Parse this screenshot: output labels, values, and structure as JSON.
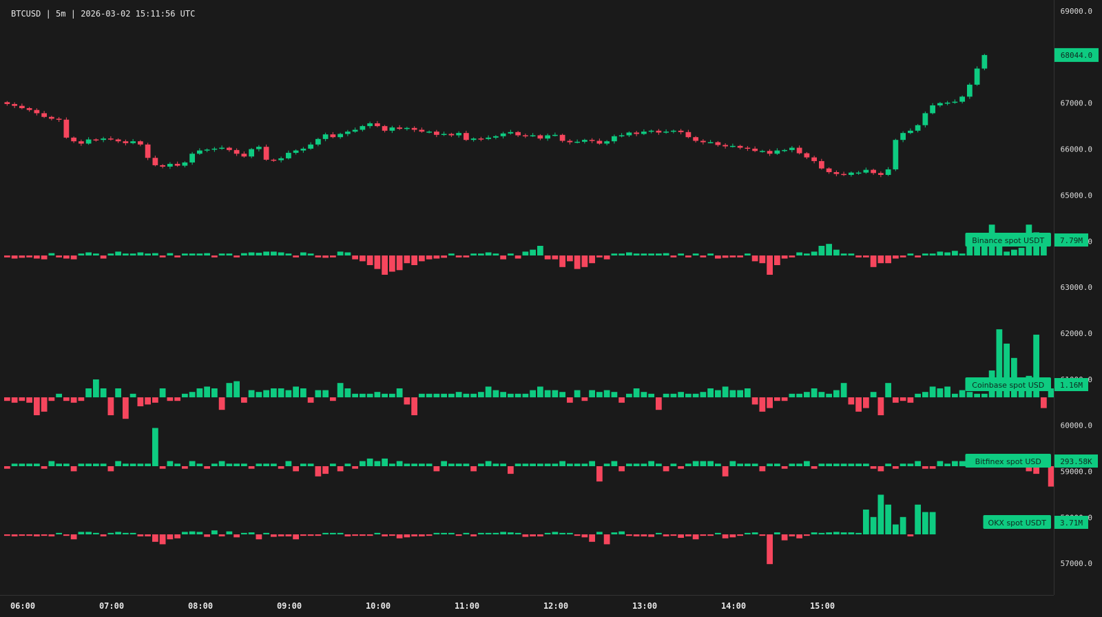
{
  "header": {
    "symbol": "BTCUSD",
    "interval": "5m",
    "timestamp": "2026-03-02 15:11:56 UTC"
  },
  "colors": {
    "background": "#1a1a1a",
    "up": "#0ecb81",
    "down": "#f6465d",
    "axis_text": "#dcdcdc",
    "border": "#333333"
  },
  "chart_data": {
    "type": "candlestick",
    "interval": "5m",
    "ylim": [
      56800,
      69100
    ],
    "y_ticks": [
      "69000.0",
      "68000.0",
      "67000.0",
      "66000.0",
      "65000.0",
      "64000.0",
      "63000.0",
      "62000.0",
      "61000.0",
      "60000.0",
      "59000.0",
      "58000.0",
      "57000.0"
    ],
    "x_ticks": [
      "06:00",
      "07:00",
      "08:00",
      "09:00",
      "10:00",
      "11:00",
      "12:00",
      "13:00",
      "14:00",
      "15:00"
    ],
    "last_price": "68044.0",
    "close_prices": [
      66980,
      66940,
      66890,
      66850,
      66780,
      66700,
      66660,
      66640,
      66250,
      66170,
      66120,
      66210,
      66200,
      66230,
      66210,
      66170,
      66130,
      66170,
      66100,
      65810,
      65650,
      65620,
      65680,
      65640,
      65710,
      65900,
      65970,
      65990,
      66010,
      66030,
      65980,
      65900,
      65840,
      66000,
      66050,
      65770,
      65760,
      65800,
      65920,
      65970,
      66010,
      66100,
      66220,
      66320,
      66260,
      66330,
      66380,
      66420,
      66500,
      66560,
      66500,
      66400,
      66470,
      66440,
      66460,
      66420,
      66380,
      66380,
      66310,
      66330,
      66300,
      66350,
      66200,
      66230,
      66220,
      66250,
      66280,
      66340,
      66370,
      66300,
      66290,
      66300,
      66230,
      66300,
      66310,
      66180,
      66150,
      66160,
      66200,
      66180,
      66120,
      66170,
      66280,
      66300,
      66360,
      66330,
      66380,
      66400,
      66360,
      66380,
      66400,
      66370,
      66260,
      66180,
      66150,
      66150,
      66090,
      66060,
      66070,
      66030,
      66010,
      65960,
      65960,
      65900,
      65970,
      65980,
      66030,
      65910,
      65820,
      65740,
      65580,
      65500,
      65460,
      65440,
      65490,
      65490,
      65550,
      65480,
      65440,
      65560,
      66200,
      66350,
      66400,
      66520,
      66780,
      66950,
      67000,
      67010,
      67030,
      67140,
      67400,
      67750,
      68044
    ],
    "series": [
      {
        "name": "Binance spot USDT",
        "value_label": "7.79M",
        "values": [
          -0.05,
          -0.08,
          -0.06,
          -0.05,
          -0.08,
          -0.1,
          0.06,
          -0.05,
          -0.08,
          -0.1,
          0.05,
          0.08,
          0.05,
          -0.08,
          0.05,
          0.1,
          0.05,
          0.05,
          0.08,
          0.05,
          0.06,
          -0.05,
          0.06,
          -0.05,
          0.05,
          0.05,
          0.05,
          0.06,
          -0.05,
          0.05,
          0.05,
          -0.05,
          0.06,
          0.08,
          0.07,
          0.1,
          0.1,
          0.08,
          0.05,
          -0.05,
          0.08,
          0.05,
          -0.05,
          -0.06,
          -0.05,
          0.1,
          0.08,
          -0.1,
          -0.15,
          -0.25,
          -0.35,
          -0.5,
          -0.42,
          -0.38,
          -0.2,
          -0.25,
          -0.15,
          -0.1,
          -0.08,
          -0.06,
          0.05,
          -0.05,
          -0.05,
          0.05,
          0.05,
          0.08,
          0.05,
          -0.1,
          0.05,
          -0.08,
          0.1,
          0.15,
          0.25,
          -0.1,
          -0.1,
          -0.3,
          -0.15,
          -0.35,
          -0.3,
          -0.2,
          -0.05,
          -0.1,
          0.05,
          0.05,
          0.08,
          0.05,
          0.05,
          0.05,
          0.05,
          0.06,
          -0.05,
          0.05,
          -0.05,
          0.05,
          -0.05,
          0.05,
          -0.08,
          -0.06,
          -0.05,
          -0.05,
          0.05,
          -0.15,
          -0.2,
          -0.5,
          -0.25,
          -0.08,
          -0.05,
          0.08,
          0.05,
          0.1,
          0.25,
          0.3,
          0.15,
          0.05,
          0.05,
          -0.05,
          -0.05,
          -0.3,
          -0.2,
          -0.2,
          -0.08,
          -0.05,
          0.05,
          -0.05,
          0.05,
          0.05,
          0.1,
          0.08,
          0.12,
          0.05,
          0.5,
          0.25,
          0.3,
          0.8,
          0.25,
          0.1,
          0.15,
          0.2,
          0.8,
          0.6,
          0.5
        ]
      },
      {
        "name": "Coinbase spot USD",
        "value_label": "1.16M",
        "values": [
          -0.02,
          -0.03,
          -0.02,
          -0.03,
          -0.1,
          -0.08,
          -0.02,
          0.02,
          -0.02,
          -0.03,
          -0.02,
          0.05,
          0.1,
          0.05,
          -0.1,
          0.05,
          -0.12,
          0.02,
          -0.05,
          -0.04,
          -0.03,
          0.05,
          -0.02,
          -0.02,
          0.02,
          0.03,
          0.05,
          0.06,
          0.05,
          -0.07,
          0.08,
          0.09,
          -0.03,
          0.04,
          0.03,
          0.04,
          0.05,
          0.05,
          0.04,
          0.06,
          0.05,
          -0.03,
          0.04,
          0.04,
          -0.02,
          0.08,
          0.05,
          0.02,
          0.02,
          0.02,
          0.03,
          0.02,
          0.02,
          0.05,
          -0.04,
          -0.1,
          0.02,
          0.02,
          0.02,
          0.02,
          0.02,
          0.03,
          0.02,
          0.02,
          0.03,
          0.06,
          0.04,
          0.03,
          0.02,
          0.02,
          0.02,
          0.04,
          0.06,
          0.04,
          0.04,
          0.03,
          -0.03,
          0.04,
          -0.02,
          0.04,
          0.03,
          0.04,
          0.03,
          -0.03,
          0.02,
          0.05,
          0.03,
          0.02,
          -0.07,
          0.02,
          0.02,
          0.03,
          0.02,
          0.02,
          0.03,
          0.05,
          0.04,
          0.06,
          0.04,
          0.04,
          0.05,
          -0.04,
          -0.08,
          -0.06,
          -0.02,
          -0.02,
          0.02,
          0.02,
          0.03,
          0.05,
          0.03,
          0.02,
          0.04,
          0.08,
          -0.04,
          -0.08,
          -0.06,
          0.03,
          -0.1,
          0.08,
          -0.03,
          -0.02,
          -0.03,
          0.02,
          0.03,
          0.06,
          0.05,
          0.06,
          0.02,
          0.04,
          0.03,
          0.02,
          0.02,
          0.15,
          0.38,
          0.3,
          0.22,
          0.07,
          0.12,
          0.35,
          -0.06,
          0.05
        ]
      },
      {
        "name": "Bitfinex spot USD",
        "value_label": "293.58K",
        "values": [
          -0.01,
          0.01,
          0.01,
          0.01,
          0.01,
          -0.01,
          0.02,
          0.01,
          0.01,
          -0.02,
          0.01,
          0.01,
          0.01,
          0.01,
          -0.02,
          0.02,
          0.01,
          0.01,
          0.01,
          0.01,
          0.15,
          -0.01,
          0.02,
          0.01,
          -0.01,
          0.02,
          0.01,
          -0.01,
          0.01,
          0.02,
          0.01,
          0.01,
          0.01,
          -0.01,
          0.01,
          0.01,
          0.01,
          -0.01,
          0.02,
          -0.02,
          0.01,
          0.01,
          -0.04,
          -0.03,
          0.01,
          -0.02,
          0.01,
          -0.01,
          0.02,
          0.03,
          0.02,
          0.03,
          0.01,
          0.02,
          0.01,
          0.01,
          0.01,
          0.01,
          -0.02,
          0.02,
          0.01,
          0.01,
          0.01,
          -0.02,
          0.01,
          0.02,
          0.01,
          0.01,
          -0.03,
          0.01,
          0.01,
          0.01,
          0.01,
          0.01,
          0.01,
          0.02,
          0.01,
          0.01,
          0.01,
          0.02,
          -0.06,
          0.01,
          0.02,
          -0.02,
          0.01,
          0.01,
          0.01,
          0.02,
          0.01,
          -0.02,
          0.01,
          -0.01,
          0.01,
          0.02,
          0.02,
          0.02,
          0.01,
          -0.04,
          0.02,
          0.01,
          0.01,
          0.01,
          -0.02,
          0.01,
          0.01,
          -0.01,
          0.01,
          0.01,
          0.02,
          -0.01,
          0.01,
          0.01,
          0.01,
          0.01,
          0.01,
          0.01,
          0.01,
          -0.01,
          -0.02,
          0.01,
          -0.01,
          0.01,
          0.01,
          0.02,
          -0.01,
          -0.01,
          0.02,
          0.01,
          0.02,
          0.02,
          0.01,
          0.01,
          0.01,
          0.02,
          0.04,
          0.01,
          0.01,
          0.01,
          -0.02,
          -0.03,
          0.02,
          -0.08,
          0.02
        ]
      },
      {
        "name": "OKX spot USDT",
        "value_label": "3.71M",
        "values": [
          -0.03,
          -0.04,
          -0.03,
          -0.03,
          -0.04,
          -0.03,
          -0.04,
          0.03,
          -0.03,
          -0.1,
          0.05,
          0.05,
          0.03,
          -0.04,
          0.03,
          0.05,
          0.03,
          0.03,
          -0.04,
          -0.04,
          -0.15,
          -0.2,
          -0.1,
          -0.08,
          0.05,
          0.06,
          0.05,
          -0.05,
          0.08,
          -0.04,
          0.06,
          -0.06,
          0.03,
          0.04,
          -0.1,
          0.03,
          -0.05,
          -0.04,
          -0.04,
          -0.1,
          -0.03,
          -0.03,
          -0.03,
          0.03,
          0.03,
          0.03,
          -0.04,
          -0.03,
          -0.03,
          -0.03,
          0.03,
          -0.04,
          -0.03,
          -0.08,
          -0.06,
          -0.04,
          -0.04,
          -0.03,
          0.03,
          0.03,
          0.03,
          -0.03,
          0.03,
          -0.04,
          0.03,
          0.03,
          0.03,
          0.05,
          0.04,
          0.03,
          -0.05,
          -0.04,
          -0.04,
          0.03,
          0.05,
          0.03,
          0.03,
          -0.03,
          -0.06,
          -0.15,
          0.05,
          -0.2,
          0.04,
          0.06,
          -0.03,
          -0.04,
          -0.04,
          -0.05,
          0.03,
          -0.04,
          -0.03,
          -0.07,
          -0.04,
          -0.1,
          -0.03,
          -0.03,
          0.03,
          -0.08,
          -0.06,
          -0.03,
          0.03,
          0.04,
          -0.03,
          -0.6,
          0.04,
          -0.12,
          -0.04,
          -0.08,
          -0.03,
          0.04,
          0.03,
          0.04,
          0.05,
          0.04,
          0.04,
          0.03,
          0.5,
          0.35,
          0.8,
          0.6,
          0.2,
          0.35,
          -0.04,
          0.6,
          0.45,
          0.45
        ]
      }
    ]
  }
}
